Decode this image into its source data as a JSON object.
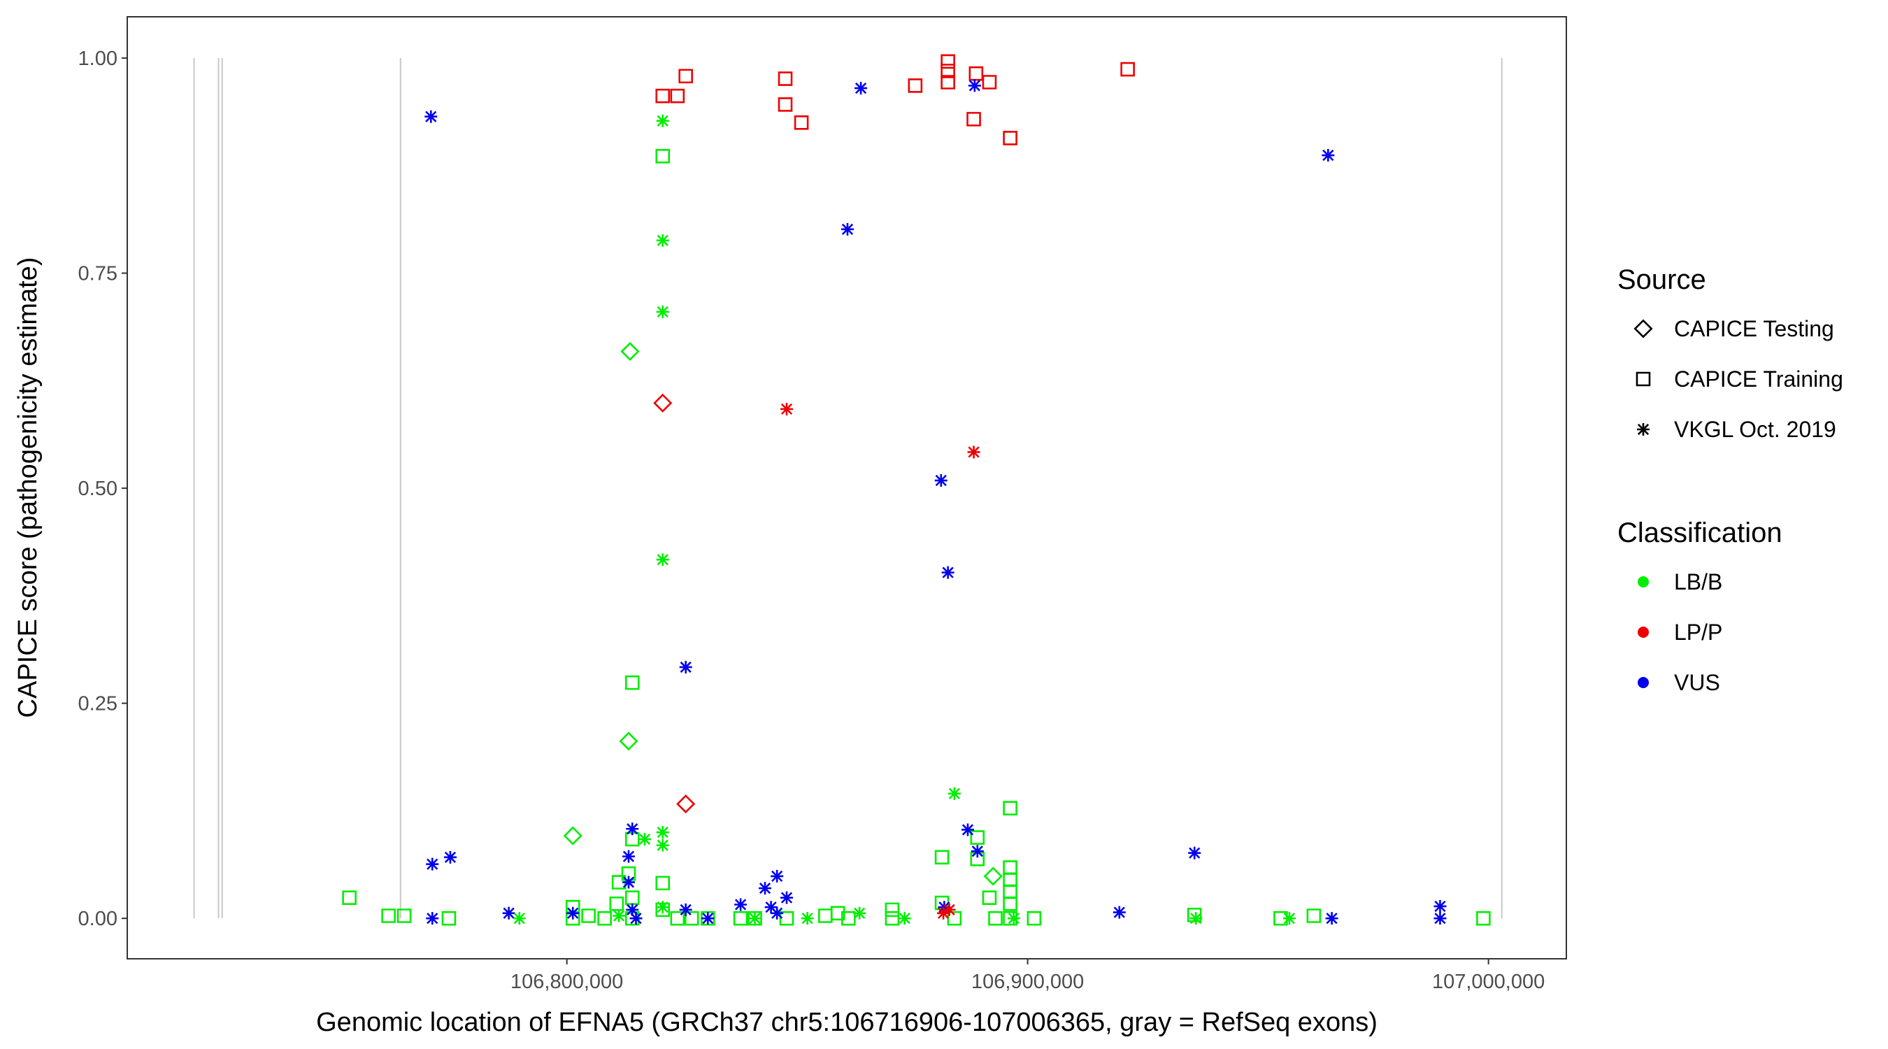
{
  "chart_data": {
    "type": "scatter",
    "x_label": "Genomic location of EFNA5 (GRCh37 chr5:106716906-107006365, gray = RefSeq exons)",
    "y_label": "CAPICE score (pathogenicity estimate)",
    "xlim": [
      106704600,
      107016900
    ],
    "ylim": [
      -0.047,
      1.048
    ],
    "xticks": [
      {
        "value": 106800000,
        "label": "106,800,000"
      },
      {
        "value": 106900000,
        "label": "106,900,000"
      },
      {
        "value": 107000000,
        "label": "107,000,000"
      }
    ],
    "yticks": [
      {
        "value": 0,
        "label": "0.00"
      },
      {
        "value": 0.25,
        "label": "0.25"
      },
      {
        "value": 0.5,
        "label": "0.50"
      },
      {
        "value": 0.75,
        "label": "0.75"
      },
      {
        "value": 1,
        "label": "1.00"
      }
    ],
    "grid": false,
    "exons": [
      106719100,
      106724400,
      106725200,
      106763900,
      107002900
    ],
    "exon_span": [
      0,
      1
    ],
    "exon_color": "#c8c8c8",
    "legends": [
      {
        "title": "Source",
        "items": [
          {
            "label": "CAPICE Testing",
            "shape": "diamond"
          },
          {
            "label": "CAPICE Training",
            "shape": "square"
          },
          {
            "label": "VKGL Oct. 2019",
            "shape": "asterisk"
          }
        ]
      },
      {
        "title": "Classification",
        "items": [
          {
            "label": "LB/B",
            "color": "#00ee00"
          },
          {
            "label": "LP/P",
            "color": "#ee0000"
          },
          {
            "label": "VUS",
            "color": "#0000ee"
          }
        ]
      }
    ],
    "series": [
      {
        "source": 0,
        "classification": 0,
        "x": [
          106813700,
          106813400,
          106801300,
          106892500
        ],
        "values": [
          0.659,
          0.206,
          0.096,
          0.049
        ]
      },
      {
        "source": 0,
        "classification": 1,
        "x": [
          106820800,
          106825800
        ],
        "values": [
          0.599,
          0.133
        ]
      },
      {
        "source": 1,
        "classification": 1,
        "x": [
          106820800,
          106824000,
          106825800,
          106847400,
          106847400,
          106850900,
          106875600,
          106882700,
          106882700,
          106882700,
          106888800,
          106891700,
          106888300,
          106896200,
          106921700
        ],
        "values": [
          0.956,
          0.956,
          0.979,
          0.976,
          0.946,
          0.925,
          0.968,
          0.996,
          0.985,
          0.972,
          0.982,
          0.972,
          0.929,
          0.907,
          0.987
        ]
      },
      {
        "source": 1,
        "classification": 0,
        "x": [
          106820800,
          106814200,
          106896200,
          106752800,
          106761300,
          106764700,
          106774400,
          106801300,
          106801300,
          106804700,
          106808200,
          106810800,
          106811300,
          106813400,
          106814200,
          106814200,
          106814200,
          106820800,
          106820800,
          106824000,
          106827100,
          106830600,
          106837700,
          106840800,
          106847700,
          106856100,
          106858800,
          106861100,
          106870600,
          106870600,
          106881400,
          106881400,
          106884100,
          106889100,
          106889100,
          106891700,
          106893000,
          106896200,
          106896200,
          106896200,
          106896200,
          106896200,
          106901400,
          106936200,
          106954900,
          106962100,
          106998900
        ],
        "values": [
          0.886,
          0.274,
          0.128,
          0.024,
          0.003,
          0.003,
          0,
          0.013,
          0,
          0.003,
          0,
          0.017,
          0.042,
          0.052,
          0.092,
          0,
          0.024,
          0.041,
          0.01,
          0,
          0,
          0,
          0,
          0,
          0,
          0.003,
          0.006,
          0,
          0.01,
          0,
          0.071,
          0.018,
          0,
          0.094,
          0.069,
          0.024,
          0,
          0.059,
          0.045,
          0.031,
          0.017,
          0,
          0,
          0.004,
          0,
          0.003,
          0
        ]
      },
      {
        "source": 2,
        "classification": 2,
        "x": [
          106770500,
          106863800,
          106888500,
          106860900,
          106965200,
          106881200,
          106882700,
          106825800,
          106814200,
          106813400,
          106887000,
          106889100,
          106936200,
          106770800,
          106774700,
          106770800,
          106787400,
          106801300,
          106813400,
          106814200,
          106815000,
          106825800,
          106830600,
          106837700,
          106843000,
          106845600,
          106847700,
          106844300,
          106845600,
          106881900,
          106919900,
          106966000,
          106989500,
          106989500
        ],
        "values": [
          0.932,
          0.965,
          0.968,
          0.801,
          0.887,
          0.509,
          0.402,
          0.292,
          0.104,
          0.072,
          0.103,
          0.078,
          0.076,
          0.063,
          0.071,
          0,
          0.006,
          0.006,
          0.042,
          0.01,
          0,
          0.01,
          0,
          0.016,
          0.035,
          0.049,
          0.024,
          0.013,
          0.006,
          0.013,
          0.007,
          0,
          0.014,
          0
        ]
      },
      {
        "source": 2,
        "classification": 0,
        "x": [
          106820800,
          106820800,
          106820800,
          106820800,
          106884100,
          106820800,
          106820800,
          106816900,
          106789700,
          106811300,
          106820800,
          106840800,
          106852200,
          106863500,
          106873300,
          106897000,
          106956800,
          106936500
        ],
        "values": [
          0.927,
          0.788,
          0.705,
          0.417,
          0.145,
          0.1,
          0.085,
          0.092,
          0,
          0.003,
          0.013,
          0,
          0,
          0.006,
          0,
          0,
          0,
          0
        ]
      },
      {
        "source": 2,
        "classification": 1,
        "x": [
          106847700,
          106888300,
          106881700,
          106883000
        ],
        "values": [
          0.592,
          0.542,
          0.006,
          0.01
        ]
      }
    ]
  }
}
